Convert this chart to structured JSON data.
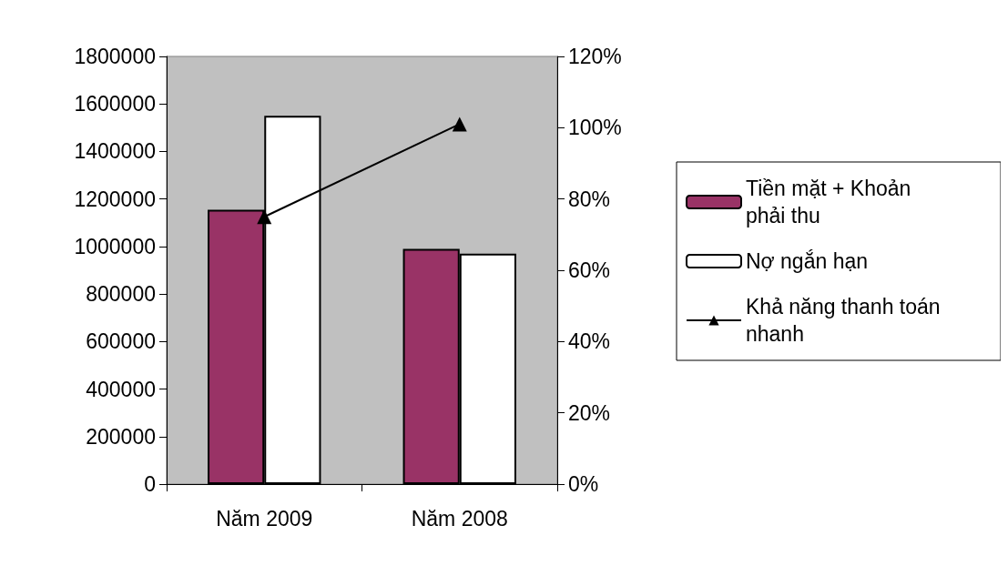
{
  "chart_data": {
    "type": "bar",
    "categories": [
      "Năm 2009",
      "Năm 2008"
    ],
    "series": [
      {
        "name": "Tiền mặt + Khoản phải thu",
        "color": "#993366",
        "values": [
          1155000,
          990000
        ]
      },
      {
        "name": "Nợ ngắn hạn",
        "color": "#ffffff",
        "values": [
          1550000,
          970000
        ]
      },
      {
        "name": "Khả năng thanh toán nhanh",
        "type": "line",
        "axis": "y2",
        "color": "#000000",
        "values": [
          75,
          101
        ]
      }
    ],
    "ylim": [
      0,
      1800000
    ],
    "yticks": [
      0,
      200000,
      400000,
      600000,
      800000,
      1000000,
      1200000,
      1400000,
      1600000,
      1800000
    ],
    "y2lim": [
      0,
      120
    ],
    "y2ticks": [
      {
        "value": 0,
        "label": "0%"
      },
      {
        "value": 20,
        "label": "20%"
      },
      {
        "value": 40,
        "label": "40%"
      },
      {
        "value": 60,
        "label": "60%"
      },
      {
        "value": 80,
        "label": "80%"
      },
      {
        "value": 100,
        "label": "100%"
      },
      {
        "value": 120,
        "label": "120%"
      }
    ],
    "grid": false,
    "legend": "right",
    "marker": "triangle"
  }
}
